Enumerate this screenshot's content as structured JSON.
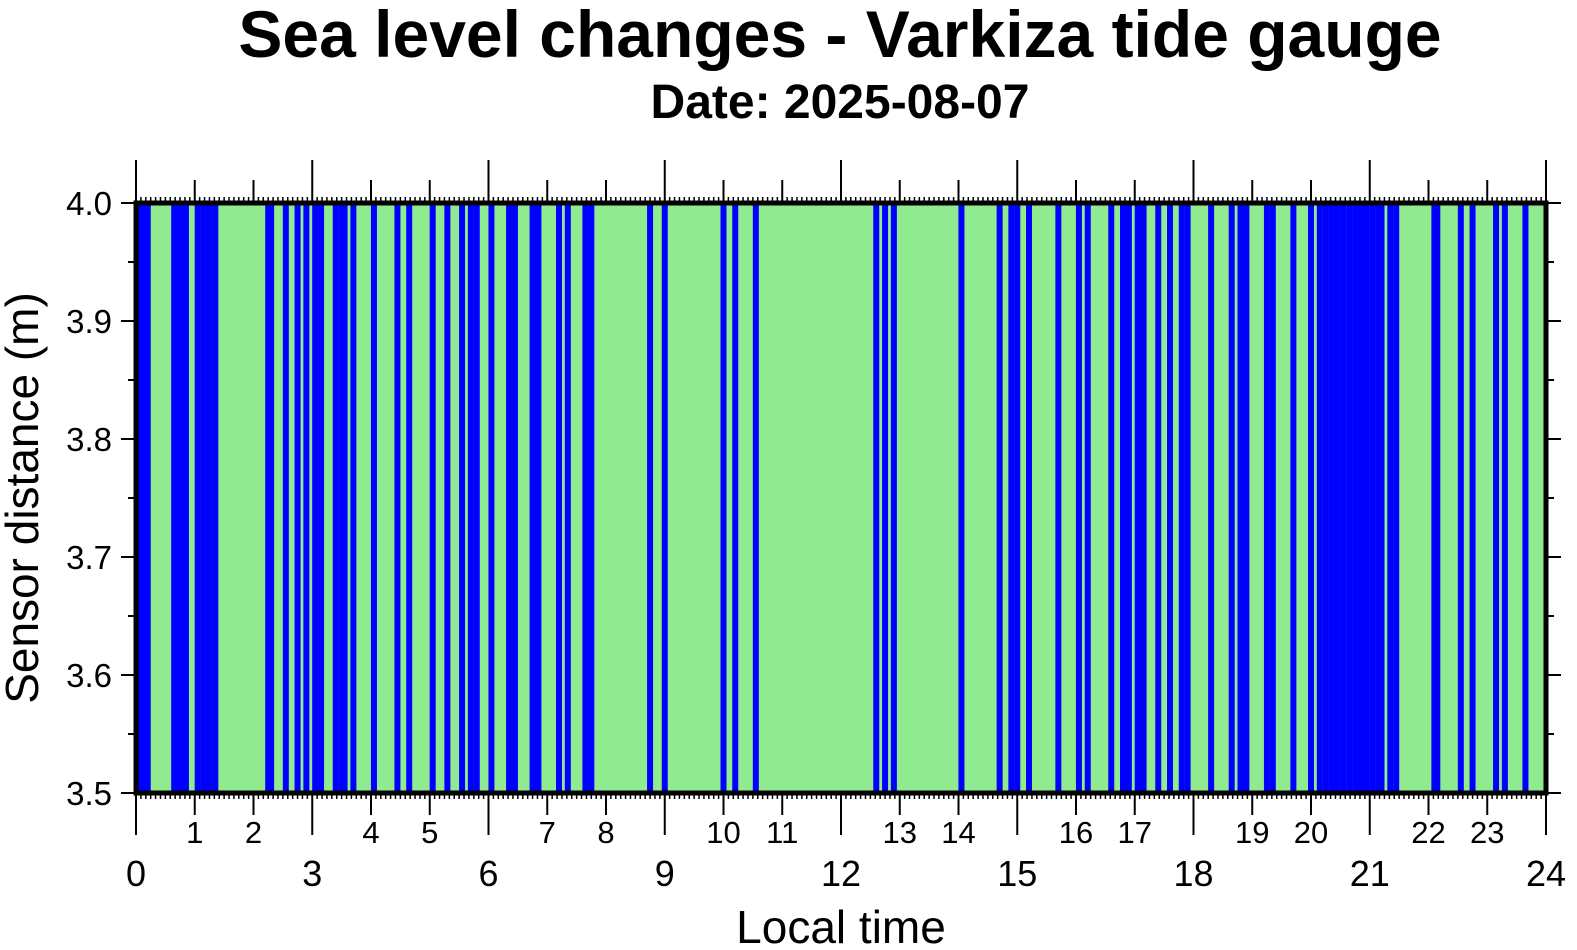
{
  "chart_data": {
    "type": "bar",
    "title": "Sea level changes - Varkiza tide gauge",
    "subtitle": "Date: 2025-08-07",
    "xlabel": "Local time",
    "ylabel": "Sensor distance (m)",
    "xlim": [
      0,
      24
    ],
    "ylim": [
      3.5,
      4.0
    ],
    "x_major_ticks": [
      "0",
      "3",
      "6",
      "9",
      "12",
      "15",
      "18",
      "21",
      "24"
    ],
    "x_minor_tick_labels": [
      "1",
      "2",
      "4",
      "5",
      "7",
      "8",
      "10",
      "11",
      "13",
      "14",
      "16",
      "17",
      "19",
      "20",
      "22",
      "23"
    ],
    "y_ticks": [
      "3.5",
      "3.6",
      "3.7",
      "3.8",
      "3.9",
      "4.0"
    ],
    "background_color": "#90ea90",
    "series": [
      {
        "color": "#0000ff",
        "description_hours": [
          0.05,
          0.1,
          0.15,
          0.2,
          0.65,
          0.7,
          0.8,
          0.85,
          1.05,
          1.15,
          1.25,
          1.35,
          2.25,
          2.3,
          2.55,
          2.75,
          2.9,
          3.05,
          3.15,
          3.4,
          3.5,
          3.55,
          3.7,
          4.05,
          4.45,
          4.65,
          5.05,
          5.3,
          5.55,
          5.7,
          5.8,
          6.05,
          6.35,
          6.45,
          6.75,
          6.85,
          7.2,
          7.35,
          7.65,
          7.75,
          8.75,
          9.0,
          10.0,
          10.2,
          10.55,
          12.6,
          12.75,
          12.9,
          14.05,
          14.7,
          14.9,
          15.0,
          15.2,
          15.7,
          16.05,
          16.2,
          16.6,
          16.8,
          16.9,
          17.05,
          17.1,
          17.15,
          17.4,
          17.6,
          17.8,
          17.9,
          18.3,
          18.65,
          18.8,
          18.9,
          19.25,
          19.35,
          19.7,
          20.0,
          20.15,
          20.25,
          20.35,
          20.45,
          20.55,
          20.65,
          20.75,
          20.85,
          20.9,
          20.95,
          21.05,
          21.15,
          21.2,
          21.35,
          21.45,
          22.1,
          22.15,
          22.55,
          22.75,
          23.15,
          23.3,
          23.65
        ]
      }
    ]
  }
}
